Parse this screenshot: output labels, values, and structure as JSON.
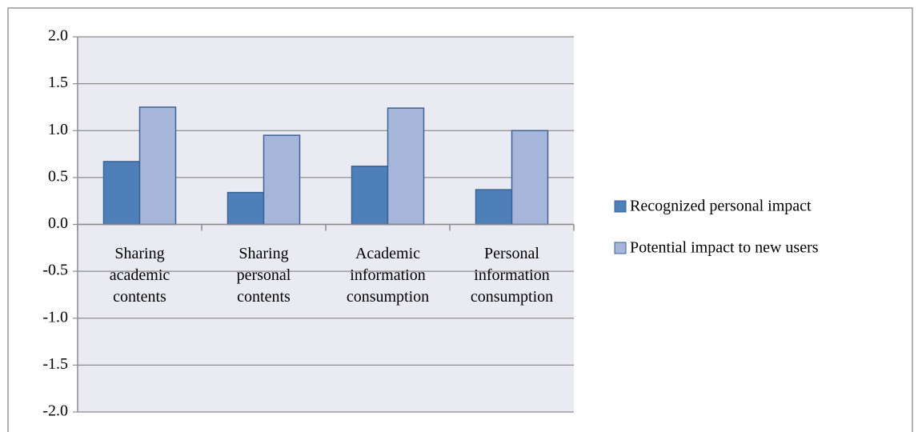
{
  "chart_data": {
    "type": "bar",
    "categories": [
      "Sharing\nacademic\ncontents",
      "Sharing\npersonal\ncontents",
      "Academic\ninformation\nconsumption",
      "Personal\ninformation\nconsumption"
    ],
    "series": [
      {
        "name": "Recognized personal impact",
        "color": "#4f7fb8",
        "values": [
          0.67,
          0.34,
          0.62,
          0.37
        ]
      },
      {
        "name": "Potential impact to new users",
        "color": "#a6b6da",
        "values": [
          1.25,
          0.95,
          1.24,
          1.0
        ]
      }
    ],
    "ylim": [
      -2,
      2
    ],
    "yticks": [
      {
        "value": -2,
        "label": "-2.0"
      },
      -1.5,
      {
        "value": -1,
        "label": "-1.0"
      },
      -0.5,
      {
        "value": 0,
        "label": "0.0"
      },
      0.5,
      {
        "value": 1,
        "label": "1.0"
      },
      1.5,
      {
        "value": 2,
        "label": "2.0"
      }
    ],
    "grid": true,
    "legend": "right"
  }
}
